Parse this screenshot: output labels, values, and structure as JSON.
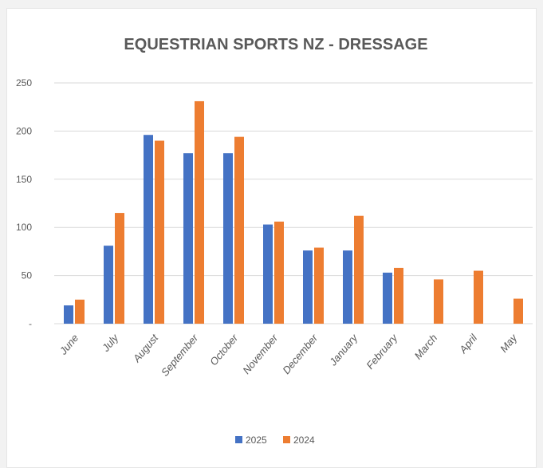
{
  "chart_data": {
    "type": "bar",
    "title": "EQUESTRIAN SPORTS NZ - DRESSAGE",
    "xlabel": "",
    "ylabel": "",
    "categories": [
      "June",
      "July",
      "August",
      "September",
      "October",
      "November",
      "December",
      "January",
      "February",
      "March",
      "April",
      "May"
    ],
    "series": [
      {
        "name": "2025",
        "color": "#4472c4",
        "values": [
          19,
          81,
          196,
          177,
          177,
          103,
          76,
          76,
          53,
          null,
          null,
          null
        ]
      },
      {
        "name": "2024",
        "color": "#ed7d31",
        "values": [
          25,
          115,
          190,
          231,
          194,
          106,
          79,
          112,
          58,
          46,
          55,
          26
        ]
      }
    ],
    "y_ticks": [
      {
        "value": 0,
        "label": "-"
      },
      {
        "value": 50,
        "label": "50"
      },
      {
        "value": 100,
        "label": "100"
      },
      {
        "value": 150,
        "label": "150"
      },
      {
        "value": 200,
        "label": "200"
      },
      {
        "value": 250,
        "label": "250"
      }
    ],
    "ylim": [
      0,
      250
    ],
    "grid": true,
    "legend_position": "bottom",
    "gridline_color": "#d9d9d9"
  }
}
